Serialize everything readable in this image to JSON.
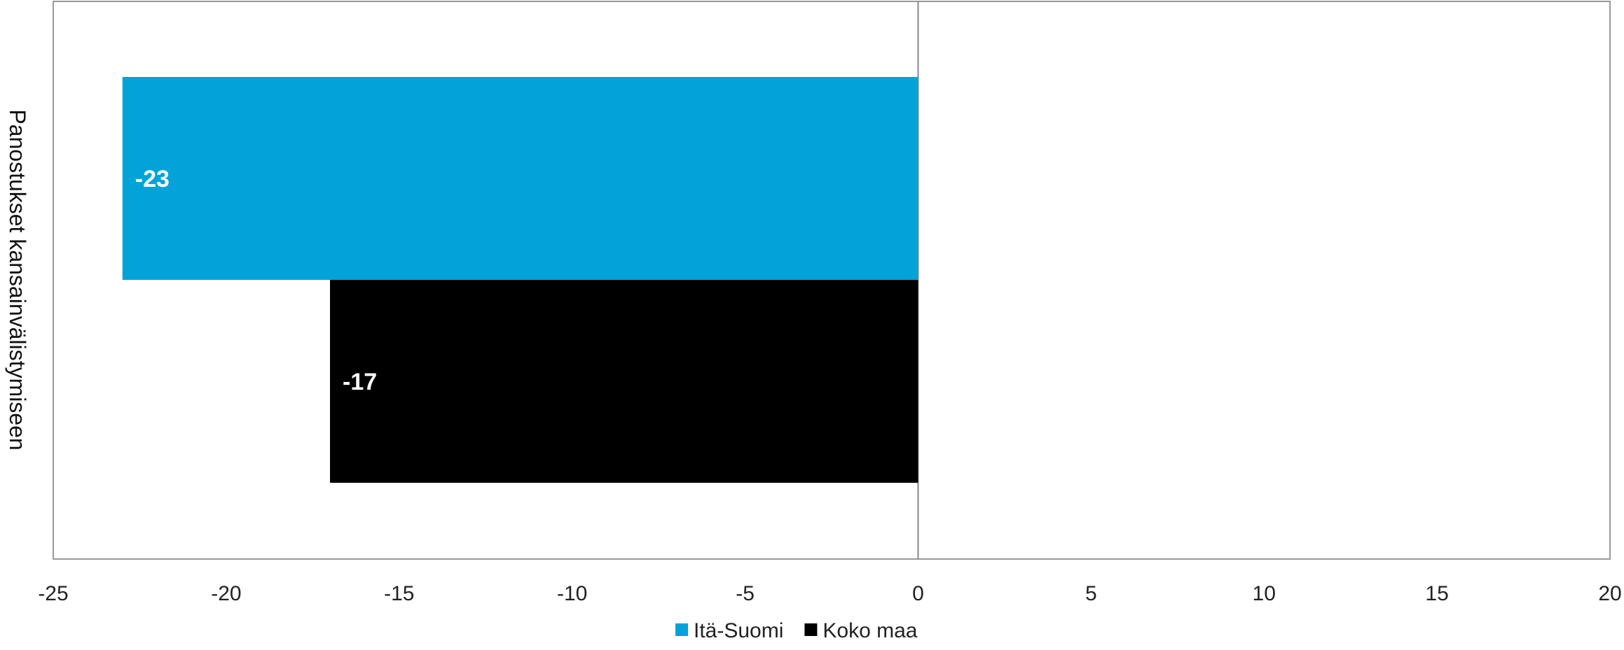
{
  "chart_data": {
    "type": "bar",
    "orientation": "horizontal",
    "categories": [
      "Panostukset kansainvälistymiseen"
    ],
    "series": [
      {
        "name": "Itä-Suomi",
        "values": [
          -23
        ],
        "color": "#03A3DA"
      },
      {
        "name": "Koko maa",
        "values": [
          -17
        ],
        "color": "#000000"
      }
    ],
    "data_labels": [
      "-23",
      "-17"
    ],
    "xlim": [
      -25,
      20
    ],
    "x_ticks": [
      "-25",
      "-20",
      "-15",
      "-10",
      "-5",
      "0",
      "5",
      "10",
      "15",
      "20"
    ],
    "grid": false,
    "legend_position": "bottom"
  }
}
